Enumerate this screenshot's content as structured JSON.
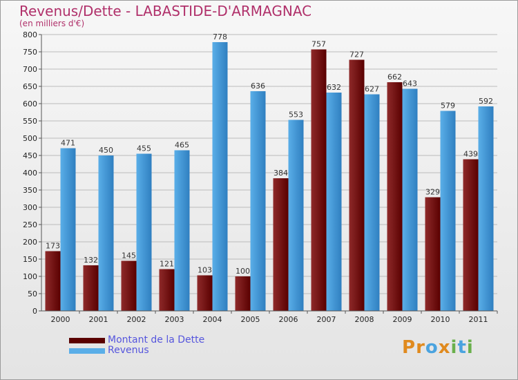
{
  "title": "Revenus/Dette - LABASTIDE-D'ARMAGNAC",
  "subtitle": "(en milliers d'€)",
  "logo": {
    "text": "Proxiti",
    "letters": [
      {
        "ch": "P",
        "color": "#e08a1e"
      },
      {
        "ch": "r",
        "color": "#e08a1e"
      },
      {
        "ch": "o",
        "color": "#4aa3df"
      },
      {
        "ch": "x",
        "color": "#e08a1e"
      },
      {
        "ch": "i",
        "color": "#6ab04c"
      },
      {
        "ch": "t",
        "color": "#4aa3df"
      },
      {
        "ch": "i",
        "color": "#6ab04c"
      }
    ]
  },
  "colors": {
    "dette_dark": "#5a0000",
    "dette_light": "#8e2a2a",
    "revenus_dark": "#2f7fc0",
    "revenus_light": "#5aaee8",
    "axis": "#555555",
    "grid": "#bbbbbb"
  },
  "chart_data": {
    "type": "bar",
    "categories": [
      "2000",
      "2001",
      "2002",
      "2003",
      "2004",
      "2005",
      "2006",
      "2007",
      "2008",
      "2009",
      "2010",
      "2011"
    ],
    "series": [
      {
        "name": "Montant de la Dette",
        "values": [
          173,
          132,
          145,
          121,
          103,
          100,
          384,
          757,
          727,
          662,
          329,
          439
        ]
      },
      {
        "name": "Revenus",
        "values": [
          471,
          450,
          455,
          465,
          778,
          636,
          553,
          632,
          627,
          643,
          579,
          592
        ]
      }
    ],
    "ylim": [
      0,
      800
    ],
    "yticks": [
      0,
      50,
      100,
      150,
      200,
      250,
      300,
      350,
      400,
      450,
      500,
      550,
      600,
      650,
      700,
      750,
      800
    ],
    "grid": true,
    "legend": "bottom-left"
  }
}
